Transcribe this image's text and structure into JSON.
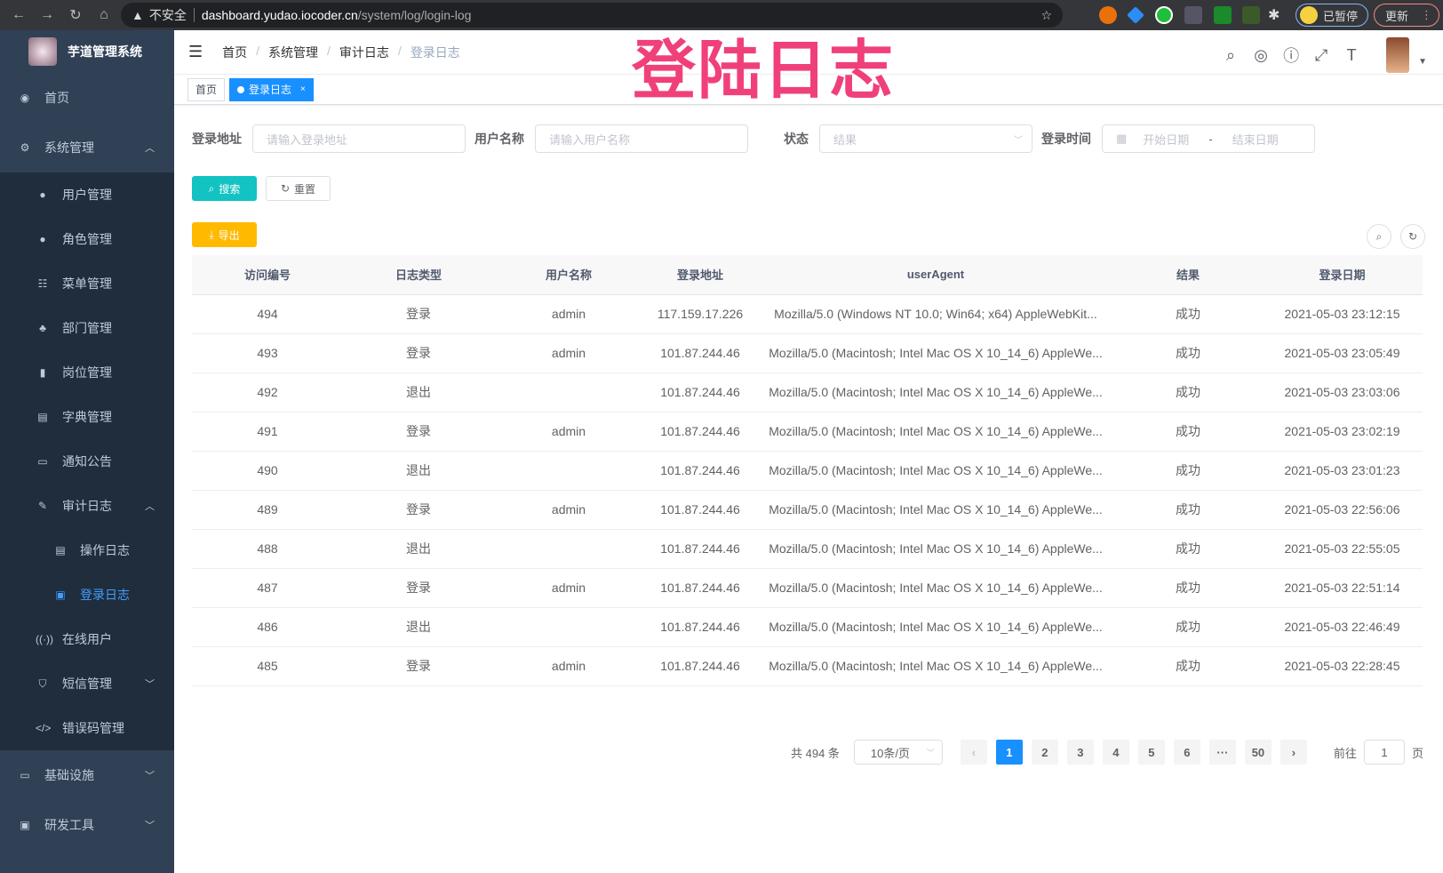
{
  "browser": {
    "back": "←",
    "forward": "→",
    "reload": "↻",
    "home": "⌂",
    "warning": "不安全",
    "url_host": "dashboard.yudao.iocoder.cn",
    "url_path": "/system/log/login-log",
    "paused": "已暂停",
    "update": "更新"
  },
  "watermark": "登陆日志",
  "sidebar": {
    "title": "芋道管理系统",
    "items": [
      {
        "label": "首页",
        "icon": "dashboard-icon"
      },
      {
        "label": "系统管理",
        "icon": "gear-icon",
        "expanded": true,
        "children": [
          {
            "label": "用户管理",
            "icon": "user-icon"
          },
          {
            "label": "角色管理",
            "icon": "peoples-icon"
          },
          {
            "label": "菜单管理",
            "icon": "tree-table-icon"
          },
          {
            "label": "部门管理",
            "icon": "tree-icon"
          },
          {
            "label": "岗位管理",
            "icon": "post-icon"
          },
          {
            "label": "字典管理",
            "icon": "dict-icon"
          },
          {
            "label": "通知公告",
            "icon": "message-icon"
          },
          {
            "label": "审计日志",
            "icon": "log-icon",
            "expanded": true,
            "children": [
              {
                "label": "操作日志",
                "icon": "form-icon"
              },
              {
                "label": "登录日志",
                "icon": "logininfor-icon",
                "active": true
              }
            ]
          },
          {
            "label": "在线用户",
            "icon": "online-icon"
          },
          {
            "label": "短信管理",
            "icon": "validCode-icon"
          },
          {
            "label": "错误码管理",
            "icon": "code-icon"
          }
        ]
      },
      {
        "label": "基础设施",
        "icon": "monitor-icon"
      },
      {
        "label": "研发工具",
        "icon": "tool-icon"
      }
    ]
  },
  "breadcrumb": [
    "首页",
    "系统管理",
    "审计日志",
    "登录日志"
  ],
  "tags": [
    {
      "label": "首页"
    },
    {
      "label": "登录日志",
      "active": true,
      "close": "×"
    }
  ],
  "filters": {
    "address_label": "登录地址",
    "address_placeholder": "请输入登录地址",
    "username_label": "用户名称",
    "username_placeholder": "请输入用户名称",
    "status_label": "状态",
    "status_placeholder": "结果",
    "time_label": "登录时间",
    "start_placeholder": "开始日期",
    "range_sep": "-",
    "end_placeholder": "结束日期"
  },
  "buttons": {
    "search": "搜索",
    "reset": "重置",
    "export": "导出"
  },
  "table": {
    "columns": [
      "访问编号",
      "日志类型",
      "用户名称",
      "登录地址",
      "userAgent",
      "结果",
      "登录日期"
    ],
    "rows": [
      [
        "494",
        "登录",
        "admin",
        "117.159.17.226",
        "Mozilla/5.0 (Windows NT 10.0; Win64; x64) AppleWebKit...",
        "成功",
        "2021-05-03 23:12:15"
      ],
      [
        "493",
        "登录",
        "admin",
        "101.87.244.46",
        "Mozilla/5.0 (Macintosh; Intel Mac OS X 10_14_6) AppleWe...",
        "成功",
        "2021-05-03 23:05:49"
      ],
      [
        "492",
        "退出",
        "",
        "101.87.244.46",
        "Mozilla/5.0 (Macintosh; Intel Mac OS X 10_14_6) AppleWe...",
        "成功",
        "2021-05-03 23:03:06"
      ],
      [
        "491",
        "登录",
        "admin",
        "101.87.244.46",
        "Mozilla/5.0 (Macintosh; Intel Mac OS X 10_14_6) AppleWe...",
        "成功",
        "2021-05-03 23:02:19"
      ],
      [
        "490",
        "退出",
        "",
        "101.87.244.46",
        "Mozilla/5.0 (Macintosh; Intel Mac OS X 10_14_6) AppleWe...",
        "成功",
        "2021-05-03 23:01:23"
      ],
      [
        "489",
        "登录",
        "admin",
        "101.87.244.46",
        "Mozilla/5.0 (Macintosh; Intel Mac OS X 10_14_6) AppleWe...",
        "成功",
        "2021-05-03 22:56:06"
      ],
      [
        "488",
        "退出",
        "",
        "101.87.244.46",
        "Mozilla/5.0 (Macintosh; Intel Mac OS X 10_14_6) AppleWe...",
        "成功",
        "2021-05-03 22:55:05"
      ],
      [
        "487",
        "登录",
        "admin",
        "101.87.244.46",
        "Mozilla/5.0 (Macintosh; Intel Mac OS X 10_14_6) AppleWe...",
        "成功",
        "2021-05-03 22:51:14"
      ],
      [
        "486",
        "退出",
        "",
        "101.87.244.46",
        "Mozilla/5.0 (Macintosh; Intel Mac OS X 10_14_6) AppleWe...",
        "成功",
        "2021-05-03 22:46:49"
      ],
      [
        "485",
        "登录",
        "admin",
        "101.87.244.46",
        "Mozilla/5.0 (Macintosh; Intel Mac OS X 10_14_6) AppleWe...",
        "成功",
        "2021-05-03 22:28:45"
      ]
    ]
  },
  "pagination": {
    "total": "共 494 条",
    "page_size": "10条/页",
    "prev": "‹",
    "next": "›",
    "pages": [
      "1",
      "2",
      "3",
      "4",
      "5",
      "6",
      "···",
      "50"
    ],
    "current": "1",
    "goto_label": "前往",
    "goto_value": "1",
    "goto_suffix": "页"
  }
}
